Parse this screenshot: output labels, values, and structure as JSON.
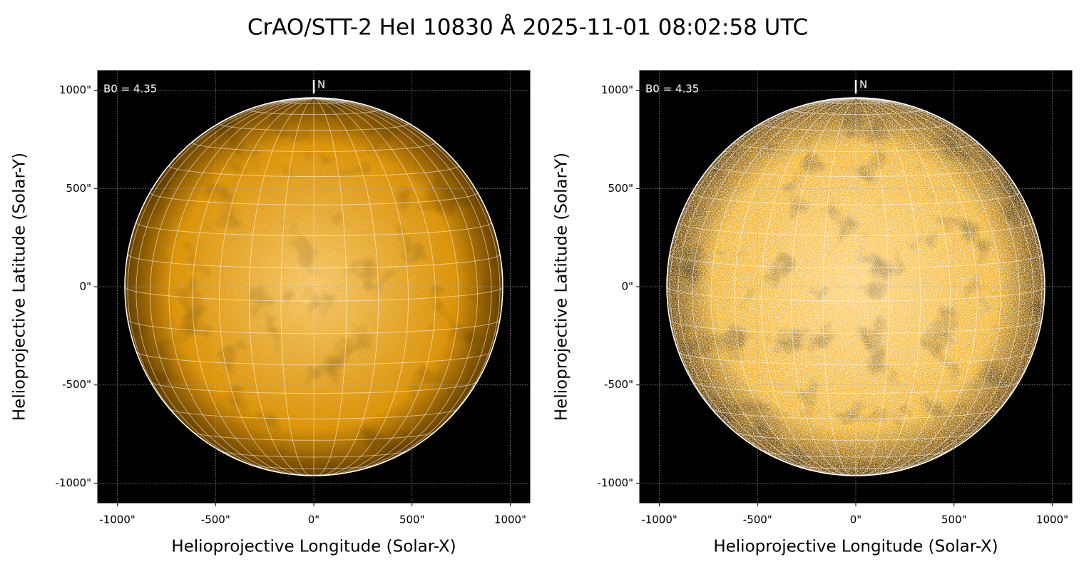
{
  "chart_data": [
    {
      "type": "solar-image",
      "title": "CrAO/STT-2 HeI 10830 Å 2025-11-01 08:02:58 UTC",
      "xlabel": "Helioprojective Longitude (Solar-X)",
      "ylabel": "Helioprojective Latitude (Solar-Y)",
      "annotations": [
        "B0 = 4.35",
        "N"
      ],
      "b0": 4.35,
      "solar_radius": 962,
      "graticule_step": 10,
      "color": "#e39a0c",
      "grid": true,
      "xlim": [
        -1100,
        1100
      ],
      "ylim": [
        -1100,
        1100
      ],
      "xticks": [
        {
          "value": -1000,
          "label": "-1000\""
        },
        {
          "value": -500,
          "label": "-500\""
        },
        {
          "value": 0,
          "label": "0\""
        },
        {
          "value": 500,
          "label": "500\""
        },
        {
          "value": 1000,
          "label": "1000\""
        }
      ],
      "yticks": [
        {
          "value": -1000,
          "label": "-1000\""
        },
        {
          "value": -500,
          "label": "-500\""
        },
        {
          "value": 0,
          "label": "0\""
        },
        {
          "value": 500,
          "label": "500\""
        },
        {
          "value": 1000,
          "label": "1000\""
        }
      ]
    },
    {
      "type": "solar-image",
      "xlabel": "Helioprojective Longitude (Solar-X)",
      "ylabel": "Helioprojective Latitude (Solar-Y)",
      "annotations": [
        "B0 = 4.35",
        "N"
      ],
      "b0": 4.35,
      "solar_radius": 962,
      "graticule_step": 10,
      "color": "#f0b22c",
      "grid": true,
      "xlim": [
        -1100,
        1100
      ],
      "ylim": [
        -1100,
        1100
      ],
      "xticks": [
        {
          "value": -1000,
          "label": "-1000\""
        },
        {
          "value": -500,
          "label": "-500\""
        },
        {
          "value": 0,
          "label": "0\""
        },
        {
          "value": 500,
          "label": "500\""
        },
        {
          "value": 1000,
          "label": "1000\""
        }
      ],
      "yticks": [
        {
          "value": -1000,
          "label": "-1000\""
        },
        {
          "value": -500,
          "label": "-500\""
        },
        {
          "value": 0,
          "label": "0\""
        },
        {
          "value": 500,
          "label": "500\""
        },
        {
          "value": 1000,
          "label": "1000\""
        }
      ]
    }
  ]
}
